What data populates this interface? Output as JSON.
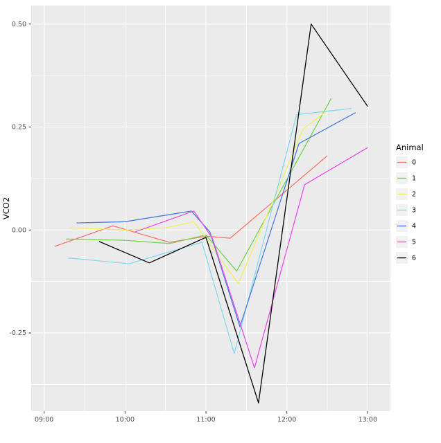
{
  "chart_data": {
    "type": "line",
    "title": "",
    "xlabel": "",
    "ylabel": "VCO2",
    "legend": {
      "title": "Animal",
      "position": "right"
    },
    "panel_bg": "#EBEBEB",
    "grid_color": "#FFFFFF",
    "tick_text_color": "#4D4D4D",
    "tick_mark_color": "#333333",
    "xlim": [
      8.84,
      13.28
    ],
    "ylim": [
      -0.44,
      0.545
    ],
    "x_ticks": [
      {
        "value": 9,
        "label": "09:00"
      },
      {
        "value": 10,
        "label": "10:00"
      },
      {
        "value": 11,
        "label": "11:00"
      },
      {
        "value": 12,
        "label": "12:00"
      },
      {
        "value": 13,
        "label": "13:00"
      }
    ],
    "y_ticks": [
      {
        "value": 0.5,
        "label": "0.50"
      },
      {
        "value": 0.25,
        "label": "0.25"
      },
      {
        "value": 0.0,
        "label": "0.00"
      },
      {
        "value": -0.25,
        "label": "-0.25"
      }
    ],
    "x_minor": [
      9.5,
      10.5,
      11.5,
      12.5
    ],
    "y_minor": [
      0.375,
      0.125,
      -0.125,
      -0.375
    ],
    "series": [
      {
        "name": "0",
        "color": "#F8766D",
        "points": [
          [
            9.13,
            -0.04
          ],
          [
            9.85,
            0.01
          ],
          [
            10.2,
            -0.01
          ],
          [
            10.55,
            -0.03
          ],
          [
            11.0,
            -0.015
          ],
          [
            11.3,
            -0.02
          ],
          [
            12.5,
            0.18
          ]
        ]
      },
      {
        "name": "1",
        "color": "#74D354",
        "points": [
          [
            9.27,
            -0.022
          ],
          [
            10.0,
            -0.025
          ],
          [
            10.55,
            -0.033
          ],
          [
            11.0,
            -0.012
          ],
          [
            11.38,
            -0.1
          ],
          [
            12.55,
            0.32
          ]
        ]
      },
      {
        "name": "2",
        "color": "#F0F060",
        "points": [
          [
            9.31,
            0.005
          ],
          [
            10.0,
            0.0
          ],
          [
            10.5,
            0.005
          ],
          [
            10.85,
            0.02
          ],
          [
            11.4,
            -0.13
          ],
          [
            12.2,
            0.245
          ],
          [
            12.5,
            0.29
          ]
        ]
      },
      {
        "name": "3",
        "color": "#86D9F2",
        "points": [
          [
            9.3,
            -0.068
          ],
          [
            10.05,
            -0.082
          ],
          [
            10.6,
            -0.05
          ],
          [
            10.95,
            -0.03
          ],
          [
            11.35,
            -0.3
          ],
          [
            12.12,
            0.28
          ],
          [
            12.8,
            0.295
          ]
        ]
      },
      {
        "name": "4",
        "color": "#4A7CDE",
        "points": [
          [
            9.4,
            0.017
          ],
          [
            10.0,
            0.02
          ],
          [
            10.82,
            0.046
          ],
          [
            11.05,
            -0.005
          ],
          [
            11.42,
            -0.235
          ],
          [
            12.15,
            0.21
          ],
          [
            12.85,
            0.285
          ]
        ]
      },
      {
        "name": "5",
        "color": "#E64FE6",
        "points": [
          [
            10.12,
            -0.005
          ],
          [
            10.85,
            0.046
          ],
          [
            11.08,
            -0.02
          ],
          [
            11.6,
            -0.335
          ],
          [
            12.22,
            0.11
          ],
          [
            13.0,
            0.2
          ]
        ]
      },
      {
        "name": "6",
        "color": "#000000",
        "points": [
          [
            9.68,
            -0.028
          ],
          [
            10.3,
            -0.08
          ],
          [
            11.0,
            -0.018
          ],
          [
            11.65,
            -0.42
          ],
          [
            12.3,
            0.5
          ],
          [
            13.0,
            0.3
          ]
        ]
      }
    ]
  }
}
